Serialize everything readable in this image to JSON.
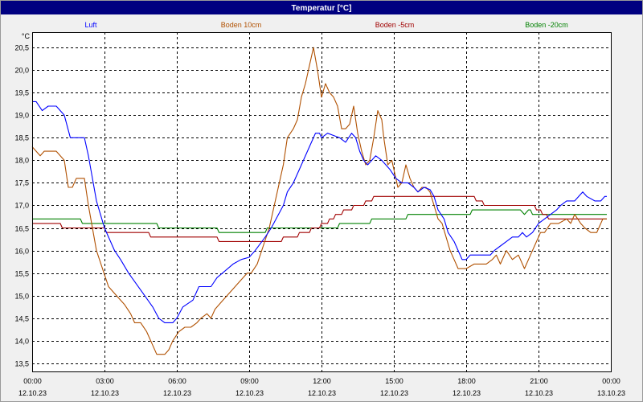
{
  "colors": {
    "title_bar": "#000080",
    "title_text": "#ffffff",
    "background": "#f0f0f0",
    "plot_background": "#ffffff",
    "grid": "#000000"
  },
  "chart_data": {
    "type": "line",
    "title": "Temperatur [°C]",
    "xlabel": "",
    "ylabel": "°C",
    "ylim": [
      13.32,
      20.84
    ],
    "xlim": [
      "12.10.23 00:00",
      "13.10.23 00:00"
    ],
    "grid": true,
    "legend_position": "top",
    "yticks": [
      "20,5",
      "20,0",
      "19,5",
      "19,0",
      "18,5",
      "18,0",
      "17,5",
      "17,0",
      "16,5",
      "16,0",
      "15,5",
      "15,0",
      "14,5",
      "14,0",
      "13,5"
    ],
    "xticks": [
      {
        "time": "00:00",
        "date": "12.10.23"
      },
      {
        "time": "03:00",
        "date": "12.10.23"
      },
      {
        "time": "06:00",
        "date": "12.10.23"
      },
      {
        "time": "09:00",
        "date": "12.10.23"
      },
      {
        "time": "12:00",
        "date": "12.10.23"
      },
      {
        "time": "15:00",
        "date": "12.10.23"
      },
      {
        "time": "18:00",
        "date": "12.10.23"
      },
      {
        "time": "21:00",
        "date": "12.10.23"
      },
      {
        "time": "00:00",
        "date": "13.10.23"
      }
    ],
    "series": [
      {
        "name": "Luft",
        "color": "#0000ff",
        "points": [
          [
            "00:00",
            19.3
          ],
          [
            "00:10",
            19.3
          ],
          [
            "00:25",
            19.1
          ],
          [
            "00:40",
            19.2
          ],
          [
            "01:00",
            19.2
          ],
          [
            "01:20",
            19.0
          ],
          [
            "01:35",
            18.5
          ],
          [
            "02:10",
            18.5
          ],
          [
            "02:20",
            18.1
          ],
          [
            "02:30",
            17.6
          ],
          [
            "02:40",
            17.1
          ],
          [
            "02:50",
            16.8
          ],
          [
            "03:00",
            16.5
          ],
          [
            "03:15",
            16.2
          ],
          [
            "03:25",
            16.0
          ],
          [
            "03:40",
            15.8
          ],
          [
            "04:00",
            15.5
          ],
          [
            "04:20",
            15.25
          ],
          [
            "04:40",
            15.0
          ],
          [
            "05:00",
            14.75
          ],
          [
            "05:15",
            14.5
          ],
          [
            "05:30",
            14.4
          ],
          [
            "05:50",
            14.4
          ],
          [
            "06:00",
            14.5
          ],
          [
            "06:15",
            14.75
          ],
          [
            "06:40",
            14.9
          ],
          [
            "06:55",
            15.2
          ],
          [
            "07:25",
            15.2
          ],
          [
            "07:40",
            15.4
          ],
          [
            "08:00",
            15.55
          ],
          [
            "08:20",
            15.7
          ],
          [
            "08:40",
            15.8
          ],
          [
            "09:00",
            15.85
          ],
          [
            "09:15",
            16.0
          ],
          [
            "09:40",
            16.3
          ],
          [
            "09:55",
            16.5
          ],
          [
            "10:10",
            16.75
          ],
          [
            "10:25",
            17.0
          ],
          [
            "10:35",
            17.3
          ],
          [
            "10:50",
            17.5
          ],
          [
            "11:05",
            17.8
          ],
          [
            "11:15",
            18.0
          ],
          [
            "11:30",
            18.3
          ],
          [
            "11:45",
            18.6
          ],
          [
            "11:55",
            18.6
          ],
          [
            "12:00",
            18.5
          ],
          [
            "12:15",
            18.6
          ],
          [
            "12:30",
            18.55
          ],
          [
            "12:45",
            18.5
          ],
          [
            "13:00",
            18.4
          ],
          [
            "13:15",
            18.6
          ],
          [
            "13:25",
            18.5
          ],
          [
            "13:35",
            18.2
          ],
          [
            "13:45",
            18.0
          ],
          [
            "13:55",
            17.9
          ],
          [
            "14:05",
            18.0
          ],
          [
            "14:15",
            18.1
          ],
          [
            "14:30",
            18.0
          ],
          [
            "14:40",
            17.9
          ],
          [
            "14:50",
            17.8
          ],
          [
            "15:05",
            17.6
          ],
          [
            "15:20",
            17.5
          ],
          [
            "15:35",
            17.5
          ],
          [
            "15:50",
            17.4
          ],
          [
            "16:00",
            17.3
          ],
          [
            "16:15",
            17.4
          ],
          [
            "16:30",
            17.35
          ],
          [
            "16:40",
            17.2
          ],
          [
            "16:50",
            16.9
          ],
          [
            "17:05",
            16.7
          ],
          [
            "17:15",
            16.4
          ],
          [
            "17:30",
            16.2
          ],
          [
            "17:40",
            16.0
          ],
          [
            "17:50",
            15.8
          ],
          [
            "18:00",
            15.8
          ],
          [
            "18:10",
            15.9
          ],
          [
            "19:00",
            15.9
          ],
          [
            "19:10",
            16.0
          ],
          [
            "19:25",
            16.1
          ],
          [
            "19:40",
            16.2
          ],
          [
            "19:55",
            16.3
          ],
          [
            "20:10",
            16.3
          ],
          [
            "20:20",
            16.4
          ],
          [
            "20:30",
            16.3
          ],
          [
            "20:45",
            16.4
          ],
          [
            "21:00",
            16.6
          ],
          [
            "21:15",
            16.7
          ],
          [
            "21:30",
            16.8
          ],
          [
            "21:45",
            16.9
          ],
          [
            "21:55",
            17.0
          ],
          [
            "22:10",
            17.1
          ],
          [
            "22:30",
            17.1
          ],
          [
            "22:40",
            17.2
          ],
          [
            "22:50",
            17.3
          ],
          [
            "23:00",
            17.2
          ],
          [
            "23:20",
            17.1
          ],
          [
            "23:35",
            17.1
          ],
          [
            "23:45",
            17.2
          ],
          [
            "23:50",
            17.2
          ]
        ]
      },
      {
        "name": "Boden 10cm",
        "color": "#b05000",
        "points": [
          [
            "00:00",
            18.3
          ],
          [
            "00:10",
            18.2
          ],
          [
            "00:20",
            18.1
          ],
          [
            "00:30",
            18.2
          ],
          [
            "01:00",
            18.2
          ],
          [
            "01:10",
            18.1
          ],
          [
            "01:20",
            18.0
          ],
          [
            "01:30",
            17.4
          ],
          [
            "01:40",
            17.4
          ],
          [
            "01:50",
            17.6
          ],
          [
            "02:10",
            17.6
          ],
          [
            "02:20",
            17.0
          ],
          [
            "02:30",
            16.5
          ],
          [
            "02:40",
            16.0
          ],
          [
            "02:55",
            15.6
          ],
          [
            "03:10",
            15.2
          ],
          [
            "03:30",
            15.0
          ],
          [
            "03:50",
            14.8
          ],
          [
            "04:05",
            14.6
          ],
          [
            "04:15",
            14.4
          ],
          [
            "04:30",
            14.4
          ],
          [
            "04:45",
            14.2
          ],
          [
            "04:55",
            14.0
          ],
          [
            "05:10",
            13.7
          ],
          [
            "05:30",
            13.7
          ],
          [
            "05:40",
            13.8
          ],
          [
            "05:50",
            14.0
          ],
          [
            "06:05",
            14.2
          ],
          [
            "06:20",
            14.3
          ],
          [
            "06:35",
            14.3
          ],
          [
            "06:50",
            14.4
          ],
          [
            "07:00",
            14.5
          ],
          [
            "07:15",
            14.6
          ],
          [
            "07:25",
            14.5
          ],
          [
            "07:35",
            14.7
          ],
          [
            "07:55",
            14.9
          ],
          [
            "08:15",
            15.1
          ],
          [
            "08:35",
            15.3
          ],
          [
            "08:55",
            15.5
          ],
          [
            "09:05",
            15.5
          ],
          [
            "09:20",
            15.7
          ],
          [
            "09:35",
            16.1
          ],
          [
            "09:50",
            16.5
          ],
          [
            "10:00",
            16.9
          ],
          [
            "10:15",
            17.5
          ],
          [
            "10:25",
            17.9
          ],
          [
            "10:35",
            18.5
          ],
          [
            "10:50",
            18.7
          ],
          [
            "11:00",
            18.9
          ],
          [
            "11:10",
            19.4
          ],
          [
            "11:20",
            19.7
          ],
          [
            "11:30",
            20.1
          ],
          [
            "11:40",
            20.5
          ],
          [
            "11:50",
            20.0
          ],
          [
            "12:00",
            19.4
          ],
          [
            "12:10",
            19.7
          ],
          [
            "12:20",
            19.5
          ],
          [
            "12:30",
            19.4
          ],
          [
            "12:40",
            19.2
          ],
          [
            "12:50",
            18.7
          ],
          [
            "13:00",
            18.7
          ],
          [
            "13:10",
            18.8
          ],
          [
            "13:20",
            19.2
          ],
          [
            "13:30",
            18.6
          ],
          [
            "13:40",
            18.2
          ],
          [
            "13:50",
            17.9
          ],
          [
            "14:00",
            18.0
          ],
          [
            "14:10",
            18.5
          ],
          [
            "14:20",
            19.1
          ],
          [
            "14:30",
            18.9
          ],
          [
            "14:35",
            18.5
          ],
          [
            "14:45",
            17.9
          ],
          [
            "14:55",
            18.0
          ],
          [
            "15:10",
            17.4
          ],
          [
            "15:20",
            17.5
          ],
          [
            "15:30",
            17.9
          ],
          [
            "15:40",
            17.6
          ],
          [
            "15:50",
            17.4
          ],
          [
            "16:00",
            17.3
          ],
          [
            "16:10",
            17.4
          ],
          [
            "16:20",
            17.4
          ],
          [
            "16:30",
            17.3
          ],
          [
            "16:40",
            17.0
          ],
          [
            "16:50",
            16.7
          ],
          [
            "17:00",
            16.6
          ],
          [
            "17:10",
            16.3
          ],
          [
            "17:20",
            16.0
          ],
          [
            "17:30",
            15.8
          ],
          [
            "17:40",
            15.6
          ],
          [
            "18:00",
            15.6
          ],
          [
            "18:20",
            15.7
          ],
          [
            "18:50",
            15.7
          ],
          [
            "19:05",
            15.8
          ],
          [
            "19:15",
            15.9
          ],
          [
            "19:25",
            15.7
          ],
          [
            "19:40",
            16.0
          ],
          [
            "19:55",
            15.8
          ],
          [
            "20:10",
            15.9
          ],
          [
            "20:25",
            15.6
          ],
          [
            "20:40",
            15.9
          ],
          [
            "20:55",
            16.2
          ],
          [
            "21:05",
            16.4
          ],
          [
            "21:15",
            16.4
          ],
          [
            "21:30",
            16.6
          ],
          [
            "21:50",
            16.6
          ],
          [
            "22:10",
            16.7
          ],
          [
            "22:20",
            16.6
          ],
          [
            "22:30",
            16.8
          ],
          [
            "22:45",
            16.6
          ],
          [
            "22:55",
            16.5
          ],
          [
            "23:10",
            16.4
          ],
          [
            "23:25",
            16.4
          ],
          [
            "23:30",
            16.5
          ],
          [
            "23:40",
            16.7
          ],
          [
            "23:50",
            16.7
          ]
        ]
      },
      {
        "name": "Boden -5cm",
        "color": "#a00000",
        "points": [
          [
            "00:00",
            16.6
          ],
          [
            "01:10",
            16.6
          ],
          [
            "01:15",
            16.5
          ],
          [
            "03:00",
            16.5
          ],
          [
            "03:05",
            16.4
          ],
          [
            "04:50",
            16.4
          ],
          [
            "04:55",
            16.3
          ],
          [
            "07:40",
            16.3
          ],
          [
            "07:45",
            16.2
          ],
          [
            "10:20",
            16.2
          ],
          [
            "10:25",
            16.3
          ],
          [
            "11:00",
            16.3
          ],
          [
            "11:05",
            16.4
          ],
          [
            "11:30",
            16.4
          ],
          [
            "11:35",
            16.5
          ],
          [
            "11:55",
            16.5
          ],
          [
            "12:00",
            16.6
          ],
          [
            "12:15",
            16.6
          ],
          [
            "12:20",
            16.7
          ],
          [
            "12:30",
            16.7
          ],
          [
            "12:35",
            16.8
          ],
          [
            "12:50",
            16.8
          ],
          [
            "12:55",
            16.9
          ],
          [
            "13:15",
            16.9
          ],
          [
            "13:20",
            17.0
          ],
          [
            "13:45",
            17.0
          ],
          [
            "13:50",
            17.1
          ],
          [
            "14:05",
            17.1
          ],
          [
            "14:10",
            17.2
          ],
          [
            "18:20",
            17.2
          ],
          [
            "18:25",
            17.1
          ],
          [
            "18:40",
            17.1
          ],
          [
            "18:45",
            17.0
          ],
          [
            "20:50",
            17.0
          ],
          [
            "20:55",
            16.9
          ],
          [
            "21:05",
            16.9
          ],
          [
            "21:10",
            16.8
          ],
          [
            "21:20",
            16.8
          ],
          [
            "21:25",
            16.7
          ],
          [
            "23:50",
            16.7
          ]
        ]
      },
      {
        "name": "Boden -20cm",
        "color": "#008000",
        "points": [
          [
            "00:00",
            16.7
          ],
          [
            "02:00",
            16.7
          ],
          [
            "02:05",
            16.6
          ],
          [
            "05:10",
            16.6
          ],
          [
            "05:15",
            16.5
          ],
          [
            "07:40",
            16.5
          ],
          [
            "07:45",
            16.4
          ],
          [
            "09:40",
            16.4
          ],
          [
            "09:45",
            16.5
          ],
          [
            "12:40",
            16.5
          ],
          [
            "12:45",
            16.6
          ],
          [
            "14:00",
            16.6
          ],
          [
            "14:05",
            16.7
          ],
          [
            "15:30",
            16.7
          ],
          [
            "15:35",
            16.8
          ],
          [
            "18:10",
            16.8
          ],
          [
            "18:15",
            16.9
          ],
          [
            "20:15",
            16.9
          ],
          [
            "20:25",
            16.8
          ],
          [
            "20:35",
            16.9
          ],
          [
            "20:40",
            16.9
          ],
          [
            "20:45",
            16.8
          ],
          [
            "23:50",
            16.8
          ]
        ]
      }
    ]
  }
}
